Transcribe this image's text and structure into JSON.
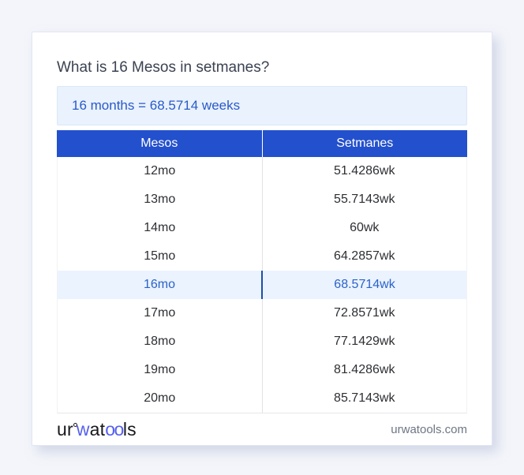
{
  "title": "What is 16 Mesos in setmanes?",
  "answer": "16 months = 68.5714 weeks",
  "table": {
    "headers": [
      "Mesos",
      "Setmanes"
    ],
    "highlight_index": 4,
    "rows": [
      {
        "mesos": "12mo",
        "setmanes": "51.4286wk"
      },
      {
        "mesos": "13mo",
        "setmanes": "55.7143wk"
      },
      {
        "mesos": "14mo",
        "setmanes": "60wk"
      },
      {
        "mesos": "15mo",
        "setmanes": "64.2857wk"
      },
      {
        "mesos": "16mo",
        "setmanes": "68.5714wk"
      },
      {
        "mesos": "17mo",
        "setmanes": "72.8571wk"
      },
      {
        "mesos": "18mo",
        "setmanes": "77.1429wk"
      },
      {
        "mesos": "19mo",
        "setmanes": "81.4286wk"
      },
      {
        "mesos": "20mo",
        "setmanes": "85.7143wk"
      }
    ]
  },
  "footer": {
    "logo": {
      "part1": "ur",
      "ring_icon": "ring-icon",
      "part2": "w",
      "part3": "at",
      "part4": "oo",
      "part5": "ls"
    },
    "site": "urwatools.com"
  },
  "colors": {
    "page_bg": "#f3f5fa",
    "card_bg": "#ffffff",
    "card_border": "#e2e6f3",
    "header_bg": "#2350cd",
    "header_text": "#ffffff",
    "answer_bg": "#e9f2fd",
    "answer_border": "#dbe8f8",
    "answer_text": "#2b5ac8",
    "highlight_bg": "#eaf3fe",
    "highlight_text": "#2c62ca",
    "highlight_divider": "#1d4fae",
    "column_divider": "#e2e3e7",
    "body_text": "#2d2f33",
    "title_text": "#3b4252",
    "footer_text": "#6e7684",
    "logo_dark": "#17181c",
    "logo_blue": "#5560ee"
  }
}
